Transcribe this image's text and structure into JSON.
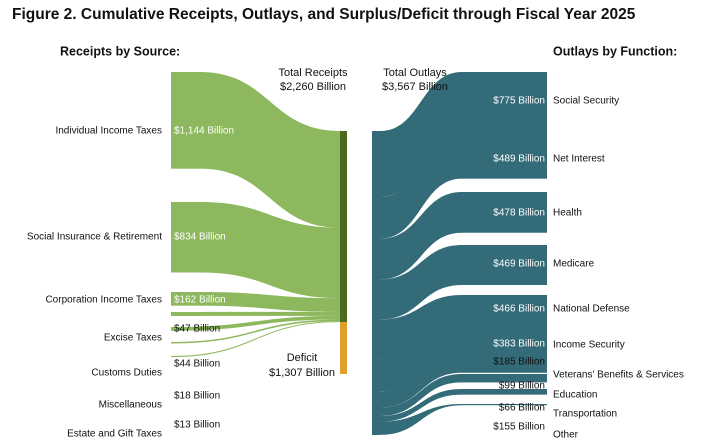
{
  "title": "Figure 2. Cumulative Receipts, Outlays, and Surplus/Deficit through Fiscal Year 2025",
  "colors": {
    "receipts_flow": "#8db85e",
    "receipts_bar": "#4d6a1c",
    "deficit_bar": "#e0a02c",
    "outlays": "#336b78"
  },
  "chart_data": {
    "type": "sankey",
    "unit": "Billion",
    "left_heading": "Receipts by Source:",
    "right_heading": "Outlays by Function:",
    "total_receipts": {
      "line1": "Total Receipts",
      "line2": "$2,260 Billion",
      "value": 2260
    },
    "total_outlays": {
      "line1": "Total Outlays",
      "line2": "$3,567 Billion",
      "value": 3567
    },
    "deficit": {
      "line1": "Deficit",
      "line2": "$1,307 Billion",
      "value": 1307
    },
    "receipts": [
      {
        "name": "Individual Income Taxes",
        "value": 1144,
        "label": "$1,144 Billion"
      },
      {
        "name": "Social Insurance & Retirement",
        "value": 834,
        "label": "$834 Billion"
      },
      {
        "name": "Corporation Income Taxes",
        "value": 162,
        "label": "$162 Billion"
      },
      {
        "name": "Excise Taxes",
        "value": 47,
        "label": "$47 Billion"
      },
      {
        "name": "Customs Duties",
        "value": 44,
        "label": "$44 Billion"
      },
      {
        "name": "Miscellaneous",
        "value": 18,
        "label": "$18 Billion"
      },
      {
        "name": "Estate and Gift Taxes",
        "value": 13,
        "label": "$13 Billion"
      }
    ],
    "outlays": [
      {
        "name": "Social Security",
        "value": 775,
        "label": "$775 Billion"
      },
      {
        "name": "Net Interest",
        "value": 489,
        "label": "$489 Billion"
      },
      {
        "name": "Health",
        "value": 478,
        "label": "$478 Billion"
      },
      {
        "name": "Medicare",
        "value": 469,
        "label": "$469 Billion"
      },
      {
        "name": "National Defense",
        "value": 466,
        "label": "$466 Billion"
      },
      {
        "name": "Income Security",
        "value": 383,
        "label": "$383 Billion"
      },
      {
        "name": "Veterans' Benefits & Services",
        "value": 185,
        "label": "$185 Billion"
      },
      {
        "name": "Education",
        "value": 99,
        "label": "$99 Billion"
      },
      {
        "name": "Transportation",
        "value": 66,
        "label": "$66 Billion"
      },
      {
        "name": "Other",
        "value": 155,
        "label": "$155 Billion"
      }
    ]
  }
}
